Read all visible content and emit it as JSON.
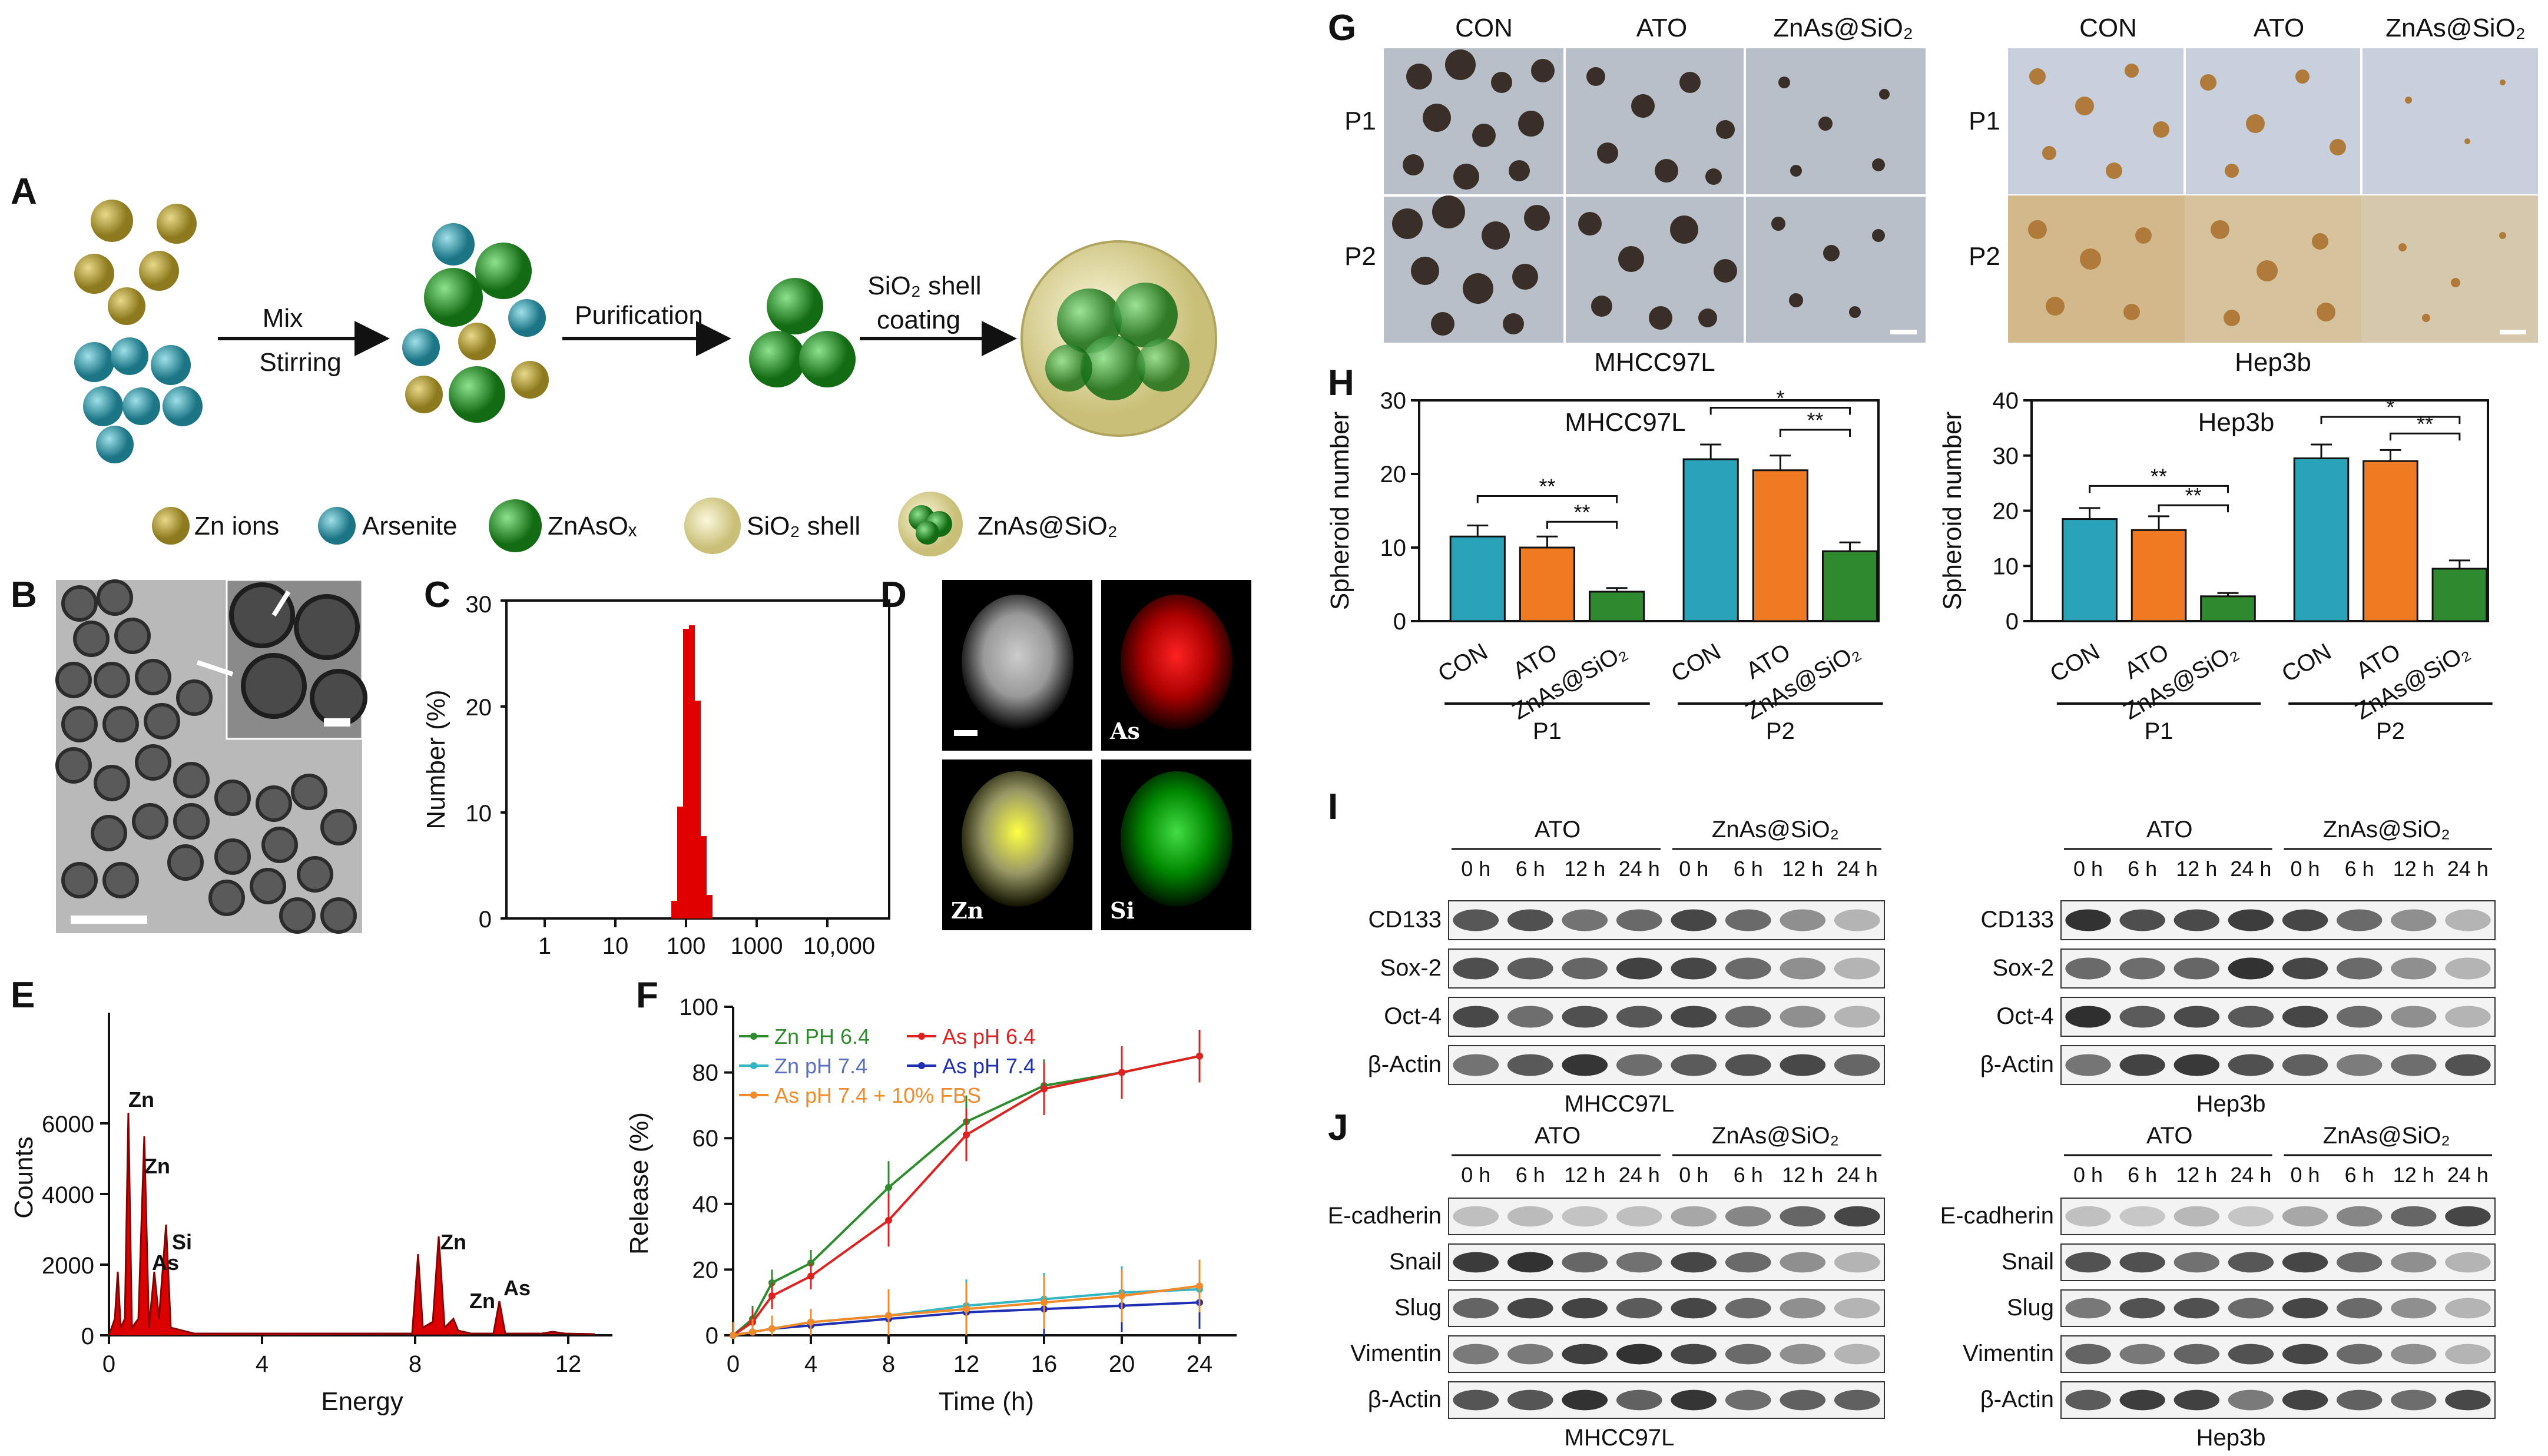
{
  "panels": {
    "A": "A",
    "B": "B",
    "C": "C",
    "D": "D",
    "E": "E",
    "F": "F",
    "G": "G",
    "H": "H",
    "I": "I",
    "J": "J"
  },
  "scheme": {
    "step1_top": "Mix",
    "step1_bottom": "Stirring",
    "step2": "Purification",
    "step3_line1": "SiO₂ shell",
    "step3_line2": "coating",
    "legend": [
      "Zn ions",
      "Arsenite",
      "ZnAsOₓ",
      "SiO₂ shell",
      "ZnAs@SiO₂"
    ],
    "colors": {
      "zn": "#b8a13a",
      "arsenite": "#3a9fb0",
      "znaso": "#2fa23a",
      "shell": "#e8e3b0"
    }
  },
  "dls": {
    "ylabel": "Number (%)",
    "yticks": [
      "0",
      "10",
      "20",
      "30"
    ],
    "xticks": [
      "1",
      "10",
      "100",
      "1000",
      "10,000"
    ]
  },
  "eds_map": {
    "labels": [
      "As",
      "Zn",
      "Si"
    ]
  },
  "eds": {
    "ylabel": "Counts",
    "xlabel": "Energy",
    "yticks": [
      "0",
      "2000",
      "4000",
      "6000"
    ],
    "xticks": [
      "0",
      "4",
      "8",
      "12"
    ],
    "peaks": [
      "Zn",
      "Zn",
      "As",
      "Si",
      "Zn",
      "Zn",
      "As"
    ]
  },
  "release": {
    "ylabel": "Release (%)",
    "xlabel": "Time (h)",
    "yticks": [
      "0",
      "20",
      "40",
      "60",
      "80",
      "100"
    ],
    "xticks": [
      "0",
      "4",
      "8",
      "12",
      "16",
      "20",
      "24"
    ],
    "legend": [
      "Zn PH 6.4",
      "As pH 6.4",
      "Zn pH 7.4",
      "As pH 7.4",
      "As pH 7.4 + 10% FBS"
    ]
  },
  "spheroid_images": {
    "cols": [
      "CON",
      "ATO",
      "ZnAs@SiO₂"
    ],
    "rows": [
      "P1",
      "P2"
    ],
    "left_cell": "MHCC97L",
    "right_cell": "Hep3b"
  },
  "blot": {
    "groups": [
      "ATO",
      "ZnAs@SiO₂"
    ],
    "times": [
      "0 h",
      "6 h",
      "12 h",
      "24 h",
      "0 h",
      "6 h",
      "12 h",
      "24 h"
    ],
    "I_rows": [
      "CD133",
      "Sox-2",
      "Oct-4",
      "β-Actin"
    ],
    "J_rows": [
      "E-cadherin",
      "Snail",
      "Slug",
      "Vimentin",
      "β-Actin"
    ],
    "left_cell": "MHCC97L",
    "right_cell": "Hep3b"
  },
  "chart_data": [
    {
      "type": "bar",
      "title": "MHCC97L",
      "ylabel": "Spheroid number",
      "ylim": [
        0,
        30
      ],
      "categories": [
        "CON",
        "ATO",
        "ZnAs@SiO₂",
        "CON",
        "ATO",
        "ZnAs@SiO₂"
      ],
      "groups": [
        "P1",
        "P2"
      ],
      "values": [
        11.5,
        10,
        4,
        22,
        20.5,
        9.5
      ],
      "errors": [
        1.5,
        1.5,
        0.5,
        2,
        2,
        1.2
      ],
      "colors": [
        "#2aa3b8",
        "#f07a22",
        "#2f8a2f",
        "#2aa3b8",
        "#f07a22",
        "#2f8a2f"
      ],
      "significance": [
        "**",
        "**",
        "*",
        "**"
      ],
      "yticks": [
        "0",
        "10",
        "20",
        "30"
      ]
    },
    {
      "type": "bar",
      "title": "Hep3b",
      "ylabel": "Spheroid number",
      "ylim": [
        0,
        40
      ],
      "categories": [
        "CON",
        "ATO",
        "ZnAs@SiO₂",
        "CON",
        "ATO",
        "ZnAs@SiO₂"
      ],
      "groups": [
        "P1",
        "P2"
      ],
      "values": [
        18.5,
        16.5,
        4.5,
        29.5,
        29,
        9.5
      ],
      "errors": [
        2,
        2.5,
        0.6,
        2.5,
        2,
        1.5
      ],
      "colors": [
        "#2aa3b8",
        "#f07a22",
        "#2f8a2f",
        "#2aa3b8",
        "#f07a22",
        "#2f8a2f"
      ],
      "significance": [
        "**",
        "**",
        "*",
        "**"
      ],
      "yticks": [
        "0",
        "10",
        "20",
        "30",
        "40"
      ]
    },
    {
      "type": "line",
      "title": "",
      "xlabel": "Time (h)",
      "ylabel": "Release (%)",
      "xlim": [
        0,
        25
      ],
      "ylim": [
        0,
        100
      ],
      "x": [
        0,
        1,
        2,
        4,
        8,
        12,
        16,
        20,
        24
      ],
      "series": [
        {
          "name": "Zn PH 6.4",
          "values": [
            0,
            5,
            16,
            22,
            45,
            65,
            76,
            80,
            85
          ],
          "color": "#2e8b2e"
        },
        {
          "name": "As pH 6.4",
          "values": [
            0,
            4,
            12,
            18,
            35,
            61,
            75,
            80,
            85
          ],
          "color": "#d22"
        },
        {
          "name": "Zn pH 7.4",
          "values": [
            0,
            1,
            2,
            4,
            6,
            9,
            11,
            13,
            14
          ],
          "color": "#33b5c4"
        },
        {
          "name": "As pH 7.4",
          "values": [
            0,
            1,
            2,
            3,
            5,
            7,
            8,
            9,
            10
          ],
          "color": "#1f2fb3"
        },
        {
          "name": "As pH 7.4 + 10% FBS",
          "values": [
            0,
            1,
            2,
            4,
            6,
            8,
            10,
            12,
            15
          ],
          "color": "#f08a2a"
        }
      ]
    }
  ]
}
